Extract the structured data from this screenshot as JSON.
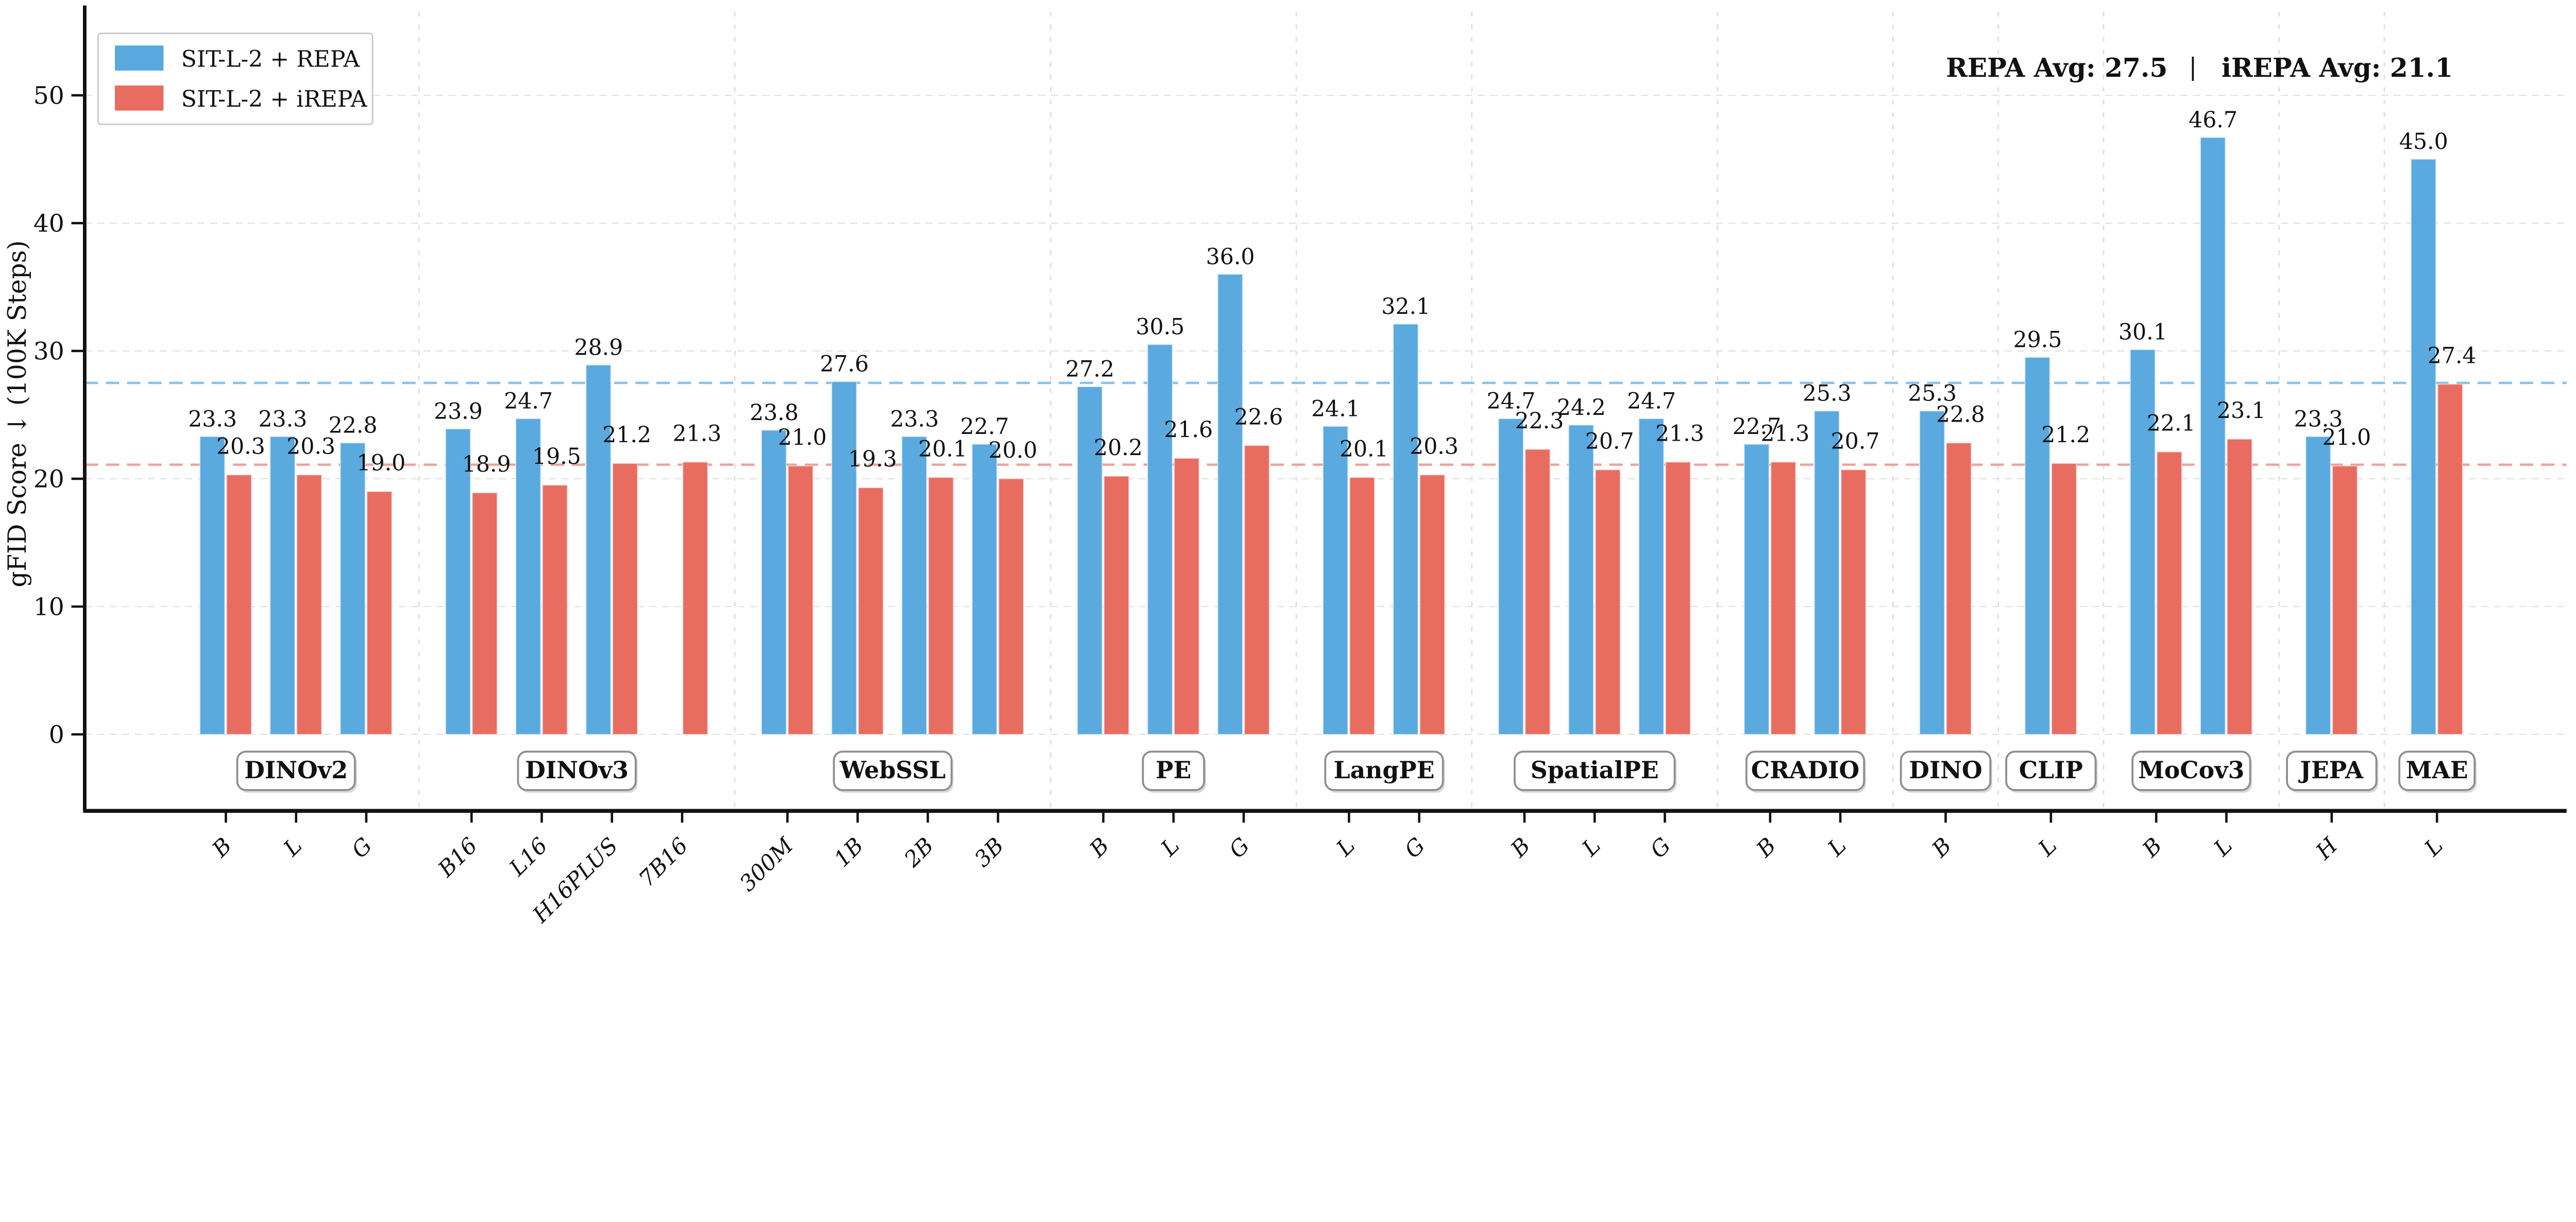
{
  "chart_data": {
    "type": "bar",
    "title": "",
    "ylabel": "gFID Score ↓ (100K Steps)",
    "xlabel": "",
    "ylim": [
      0,
      50
    ],
    "yticks": [
      0,
      10,
      20,
      30,
      40,
      50
    ],
    "grid": "horizontal-dashed",
    "legend_position": "upper-left",
    "series": [
      {
        "name": "SIT-L-2 + REPA",
        "key": "repa",
        "color": "#5AAAE0",
        "edge": "#cfe6f7"
      },
      {
        "name": "SIT-L-2 + iREPA",
        "key": "irepa",
        "color": "#E96C61",
        "edge": "#f8d3cf"
      }
    ],
    "avg_lines": [
      {
        "label": "REPA Avg: 27.5",
        "value": 27.5,
        "text_color": "#2E95D3",
        "line_color": "#8AC1EA"
      },
      {
        "label": "iREPA Avg: 21.1",
        "value": 21.1,
        "text_color": "#E8493A",
        "line_color": "#F2A099"
      }
    ],
    "annotation_separator": "|",
    "groups": [
      {
        "name": "DINOv2",
        "ticks": [
          "B",
          "L",
          "G"
        ],
        "repa": [
          23.3,
          23.3,
          22.8
        ],
        "irepa": [
          20.3,
          20.3,
          19.0
        ]
      },
      {
        "name": "DINOv3",
        "ticks": [
          "B16",
          "L16",
          "H16PLUS",
          "7B16"
        ],
        "repa": [
          23.9,
          24.7,
          28.9,
          null
        ],
        "irepa": [
          18.9,
          19.5,
          21.2,
          21.3
        ]
      },
      {
        "name": "WebSSL",
        "ticks": [
          "300M",
          "1B",
          "2B",
          "3B"
        ],
        "repa": [
          23.8,
          27.6,
          23.3,
          22.7
        ],
        "irepa": [
          21.0,
          19.3,
          20.1,
          20.0
        ]
      },
      {
        "name": "PE",
        "ticks": [
          "B",
          "L",
          "G"
        ],
        "repa": [
          27.2,
          30.5,
          36.0
        ],
        "irepa": [
          20.2,
          21.6,
          22.6
        ]
      },
      {
        "name": "LangPE",
        "ticks": [
          "L",
          "G"
        ],
        "repa": [
          24.1,
          32.1
        ],
        "irepa": [
          20.1,
          20.3
        ]
      },
      {
        "name": "SpatialPE",
        "ticks": [
          "B",
          "L",
          "G"
        ],
        "repa": [
          24.7,
          24.2,
          24.7
        ],
        "irepa": [
          22.3,
          20.7,
          21.3
        ]
      },
      {
        "name": "CRADIO",
        "ticks": [
          "B",
          "L"
        ],
        "repa": [
          22.7,
          25.3
        ],
        "irepa": [
          21.3,
          20.7
        ]
      },
      {
        "name": "DINO",
        "ticks": [
          "B"
        ],
        "repa": [
          25.3
        ],
        "irepa": [
          22.8
        ]
      },
      {
        "name": "CLIP",
        "ticks": [
          "L"
        ],
        "repa": [
          29.5
        ],
        "irepa": [
          21.2
        ]
      },
      {
        "name": "MoCov3",
        "ticks": [
          "B",
          "L"
        ],
        "repa": [
          30.1,
          46.7
        ],
        "irepa": [
          22.1,
          23.1
        ]
      },
      {
        "name": "JEPA",
        "ticks": [
          "H"
        ],
        "repa": [
          23.3
        ],
        "irepa": [
          21.0
        ]
      },
      {
        "name": "MAE",
        "ticks": [
          "L"
        ],
        "repa": [
          45.0
        ],
        "irepa": [
          27.4
        ]
      }
    ]
  }
}
